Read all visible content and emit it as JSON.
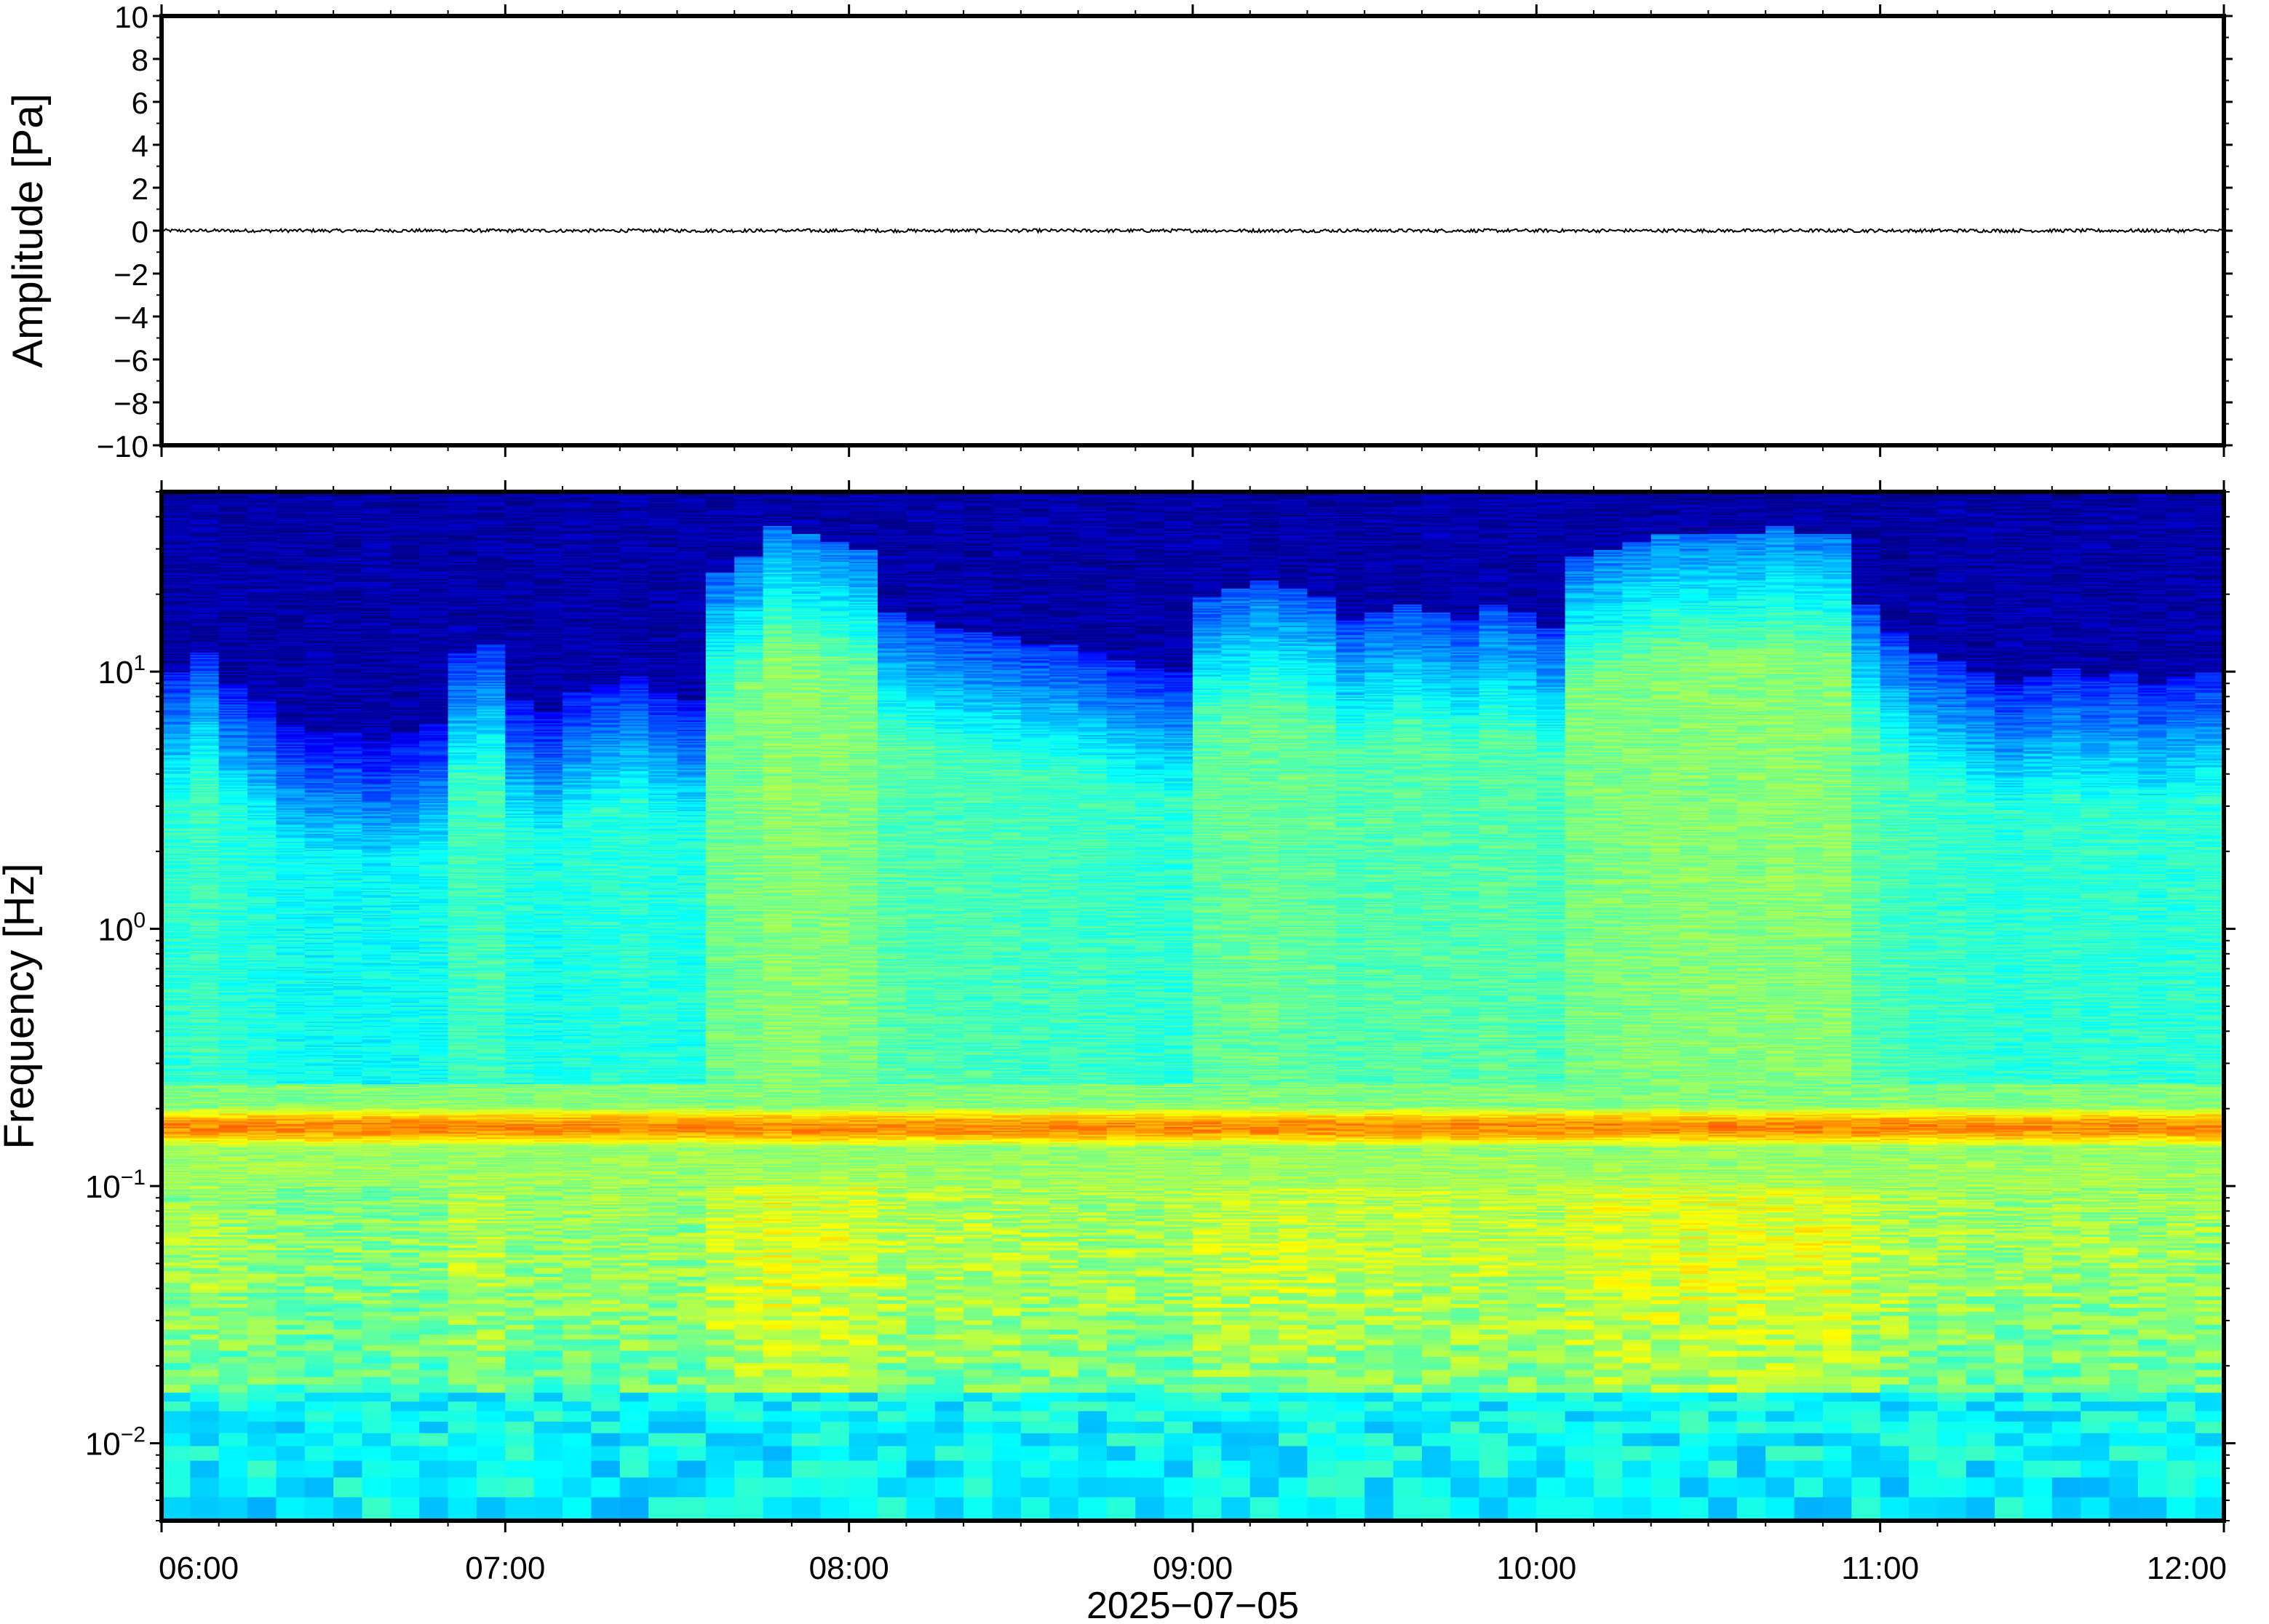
{
  "chart_data": [
    {
      "type": "line",
      "panel": "waveform",
      "ylabel": "Amplitude [Pa]",
      "ylim": [
        -10,
        10
      ],
      "yticks": [
        10,
        8,
        6,
        4,
        2,
        0,
        -2,
        -4,
        -6,
        -8,
        -10
      ],
      "ytick_labels": [
        "10",
        "8",
        "6",
        "4",
        "2",
        "0",
        "−2",
        "−4",
        "−6",
        "−8",
        "−10"
      ],
      "series": [
        {
          "color": "#000000",
          "level": 0,
          "noise_amplitude": 0.08
        }
      ],
      "grid": false
    },
    {
      "type": "heatmap",
      "panel": "spectrogram",
      "ylabel": "Frequency [Hz]",
      "yscale": "log",
      "ylim": [
        0.005,
        50
      ],
      "yticks": [
        0.01,
        0.1,
        1,
        10
      ],
      "ytick_labels": [
        {
          "base": "10",
          "exp": "−2"
        },
        {
          "base": "10",
          "exp": "−1"
        },
        {
          "base": "10",
          "exp": "0"
        },
        {
          "base": "10",
          "exp": "1"
        }
      ],
      "xlabel": "2025−07−05",
      "xlim": [
        "06:00",
        "12:00"
      ],
      "xtick_labels": [
        "06:00",
        "07:00",
        "08:00",
        "09:00",
        "10:00",
        "11:00",
        "12:00"
      ],
      "time_columns": 72,
      "column_minutes": 5,
      "upper_activity": [
        0.45,
        0.5,
        0.42,
        0.38,
        0.32,
        0.3,
        0.3,
        0.28,
        0.3,
        0.32,
        0.5,
        0.52,
        0.38,
        0.35,
        0.4,
        0.42,
        0.44,
        0.4,
        0.38,
        0.7,
        0.74,
        0.82,
        0.8,
        0.78,
        0.76,
        0.6,
        0.58,
        0.56,
        0.55,
        0.54,
        0.52,
        0.52,
        0.5,
        0.48,
        0.46,
        0.45,
        0.64,
        0.66,
        0.68,
        0.66,
        0.64,
        0.58,
        0.6,
        0.62,
        0.6,
        0.58,
        0.62,
        0.6,
        0.56,
        0.74,
        0.76,
        0.78,
        0.8,
        0.8,
        0.8,
        0.8,
        0.82,
        0.8,
        0.8,
        0.62,
        0.55,
        0.5,
        0.48,
        0.45,
        0.42,
        0.44,
        0.46,
        0.44,
        0.45,
        0.42,
        0.44,
        0.45
      ],
      "microseism_peak_hz": 0.17,
      "colormap": [
        "#00007f",
        "#0000ff",
        "#007fff",
        "#00ffff",
        "#7fff7f",
        "#ffff00",
        "#ff7f00",
        "#ff0000",
        "#7f0000"
      ]
    }
  ]
}
